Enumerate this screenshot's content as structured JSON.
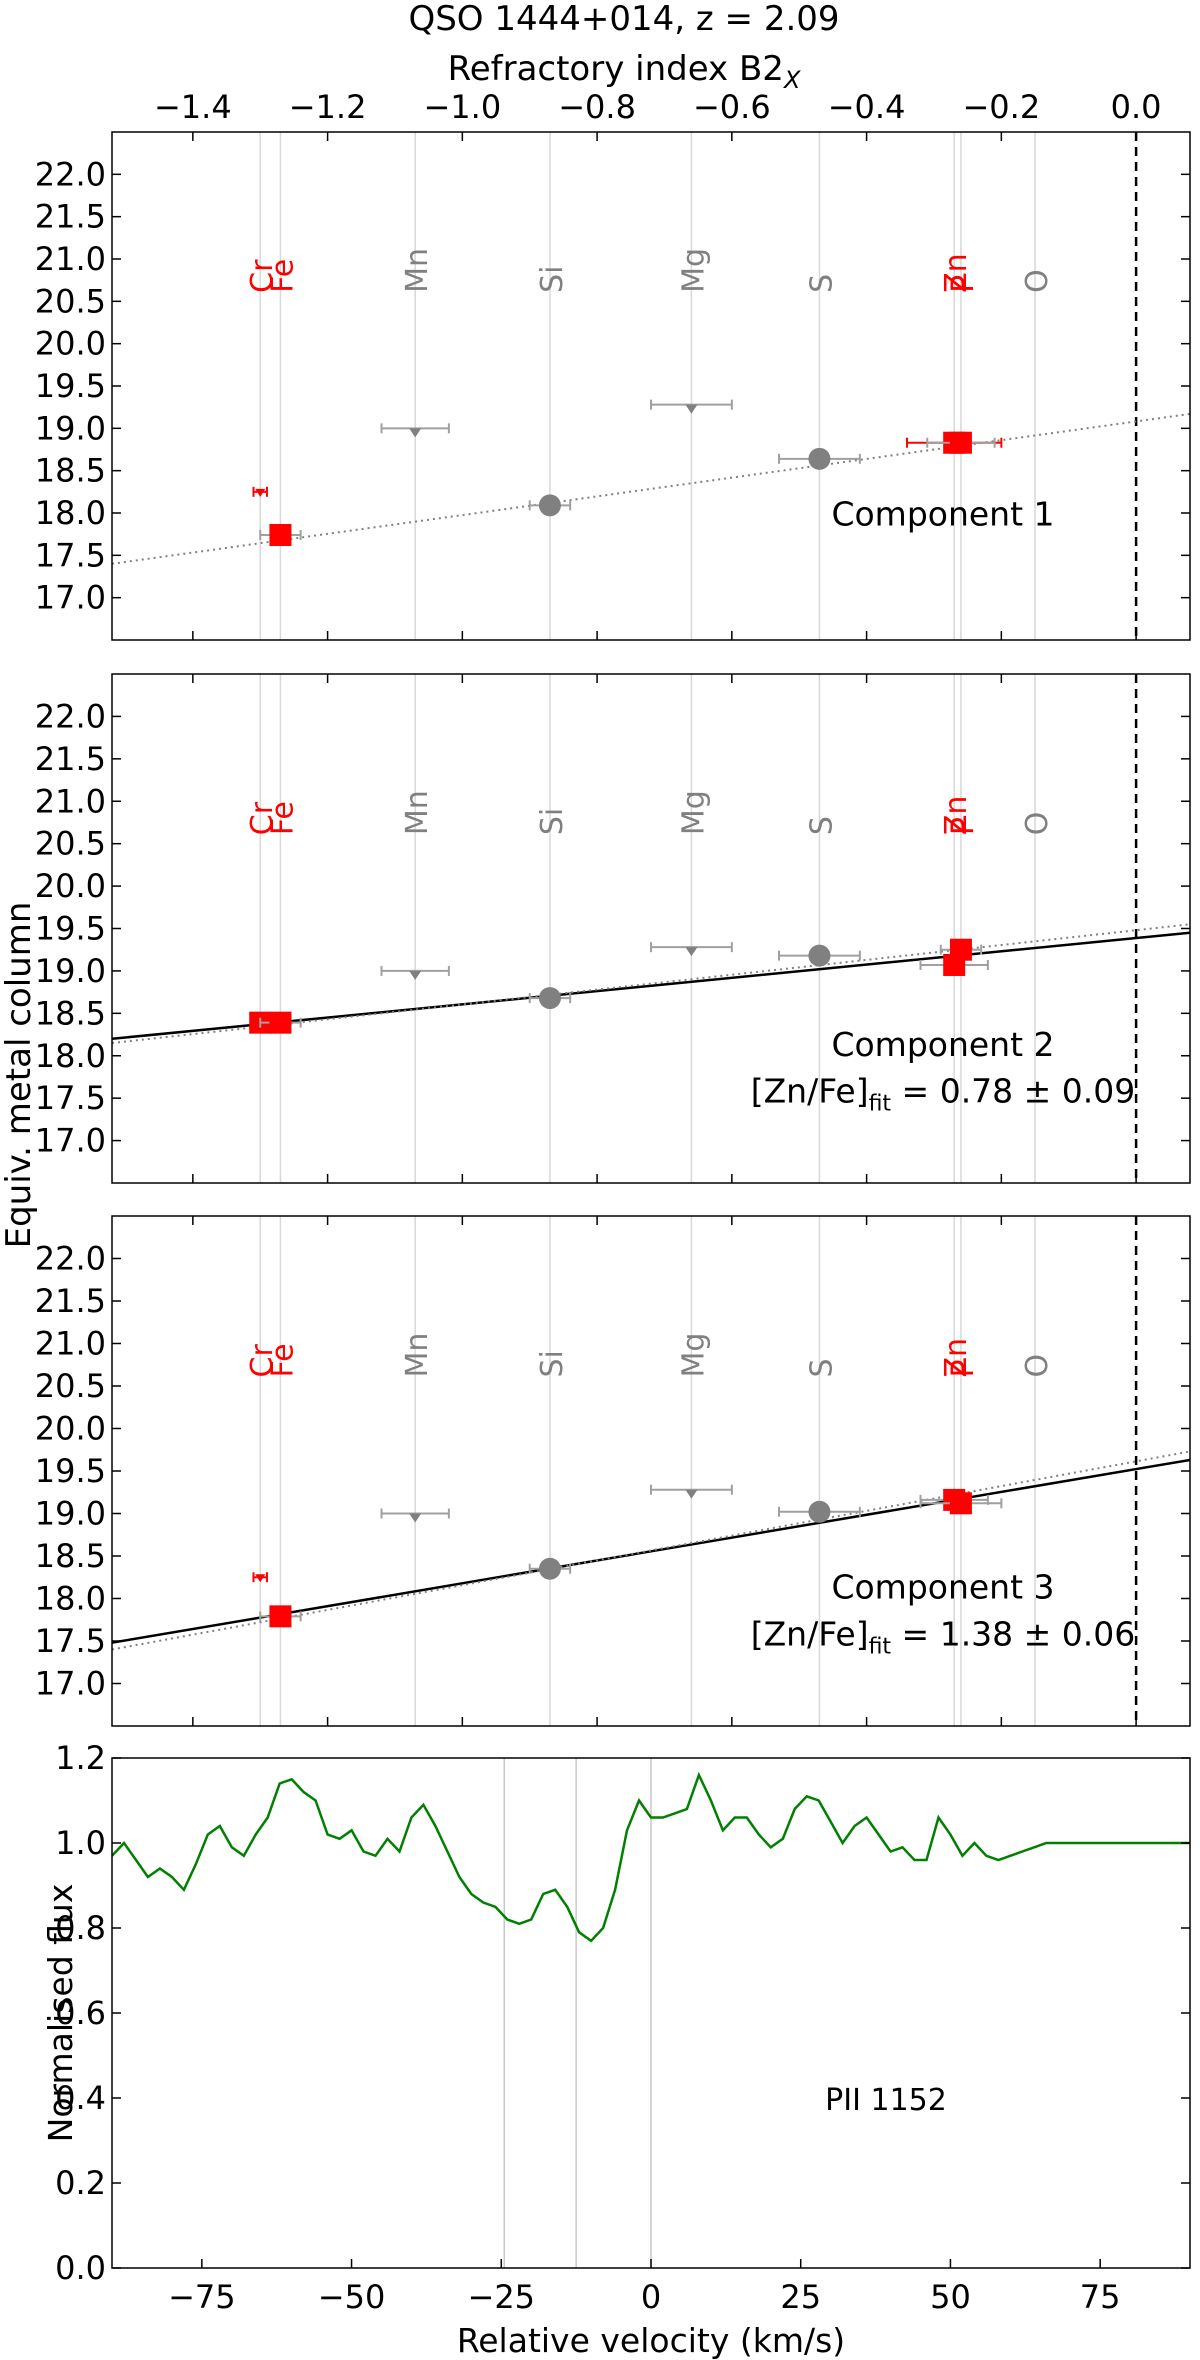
{
  "figure": {
    "title": "QSO 1444+014, z = 2.09",
    "top_axis_label": "Refractory index B2",
    "top_axis_label_sub": "X",
    "y_label": "Equiv. metal column",
    "top_ticks": [
      "−1.4",
      "−1.2",
      "−1.0",
      "−0.8",
      "−0.6",
      "−0.4",
      "−0.2",
      "0.0"
    ],
    "y_ticks": [
      "22.0",
      "21.5",
      "21.0",
      "20.5",
      "20.0",
      "19.5",
      "19.0",
      "18.5",
      "18.0",
      "17.5",
      "17.0"
    ],
    "colors": {
      "red": "#ff0000",
      "grey": "#808080",
      "green": "#008000",
      "black": "#000000"
    }
  },
  "chart_data": [
    {
      "type": "scatter",
      "label": "Component 1",
      "fit_text": "",
      "fit_text_sub": "",
      "fit_value": "",
      "xlabel": "Refractory index B2X",
      "ylabel": "Equiv. metal column",
      "xlim": [
        -1.52,
        0.08
      ],
      "ylim": [
        16.5,
        22.5
      ],
      "elements": [
        {
          "name": "Cr",
          "x": -1.3,
          "color": "red"
        },
        {
          "name": "Fe",
          "x": -1.27,
          "color": "red"
        },
        {
          "name": "Mn",
          "x": -1.07,
          "color": "grey"
        },
        {
          "name": "Si",
          "x": -0.87,
          "color": "grey"
        },
        {
          "name": "Mg",
          "x": -0.66,
          "color": "grey"
        },
        {
          "name": "S",
          "x": -0.47,
          "color": "grey"
        },
        {
          "name": "Zn",
          "x": -0.27,
          "color": "red"
        },
        {
          "name": "P",
          "x": -0.26,
          "color": "red"
        },
        {
          "name": "O",
          "x": -0.15,
          "color": "grey"
        }
      ],
      "points": [
        {
          "el": "Cr",
          "x": -1.3,
          "y": 18.25,
          "xerr": 0.01,
          "marker": "limit-red"
        },
        {
          "el": "Fe",
          "x": -1.27,
          "y": 17.74,
          "xerr": 0.03,
          "marker": "square"
        },
        {
          "el": "Mn",
          "x": -1.07,
          "y": 19.0,
          "xerr": 0.05,
          "marker": "upper"
        },
        {
          "el": "Si",
          "x": -0.87,
          "y": 18.09,
          "xerr": 0.03,
          "marker": "circle"
        },
        {
          "el": "Mg",
          "x": -0.66,
          "y": 19.28,
          "xerr": 0.06,
          "marker": "upper"
        },
        {
          "el": "S",
          "x": -0.47,
          "y": 18.64,
          "xerr": 0.06,
          "marker": "circle"
        },
        {
          "el": "Zn",
          "x": -0.27,
          "y": 18.83,
          "xerr": 0.07,
          "marker": "square-err"
        },
        {
          "el": "P",
          "x": -0.26,
          "y": 18.83,
          "xerr": 0.05,
          "marker": "square"
        }
      ],
      "fit_dotted": [
        [
          -1.52,
          17.4
        ],
        [
          0.08,
          19.17
        ]
      ],
      "fit_solid": null
    },
    {
      "type": "scatter",
      "label": "Component 2",
      "fit_text": "[Zn/Fe]",
      "fit_text_sub": "fit",
      "fit_value": " = 0.78 ± 0.09",
      "xlabel": "Refractory index B2X",
      "ylabel": "Equiv. metal column",
      "xlim": [
        -1.52,
        0.08
      ],
      "ylim": [
        16.5,
        22.5
      ],
      "elements": [
        {
          "name": "Cr",
          "x": -1.3,
          "color": "red"
        },
        {
          "name": "Fe",
          "x": -1.27,
          "color": "red"
        },
        {
          "name": "Mn",
          "x": -1.07,
          "color": "grey"
        },
        {
          "name": "Si",
          "x": -0.87,
          "color": "grey"
        },
        {
          "name": "Mg",
          "x": -0.66,
          "color": "grey"
        },
        {
          "name": "S",
          "x": -0.47,
          "color": "grey"
        },
        {
          "name": "Zn",
          "x": -0.27,
          "color": "red"
        },
        {
          "name": "P",
          "x": -0.26,
          "color": "red"
        },
        {
          "name": "O",
          "x": -0.15,
          "color": "grey"
        }
      ],
      "points": [
        {
          "el": "Cr",
          "x": -1.3,
          "y": 18.39,
          "xerr": 0.01,
          "marker": "square"
        },
        {
          "el": "Fe",
          "x": -1.27,
          "y": 18.39,
          "xerr": 0.03,
          "marker": "square"
        },
        {
          "el": "Mn",
          "x": -1.07,
          "y": 19.0,
          "xerr": 0.05,
          "marker": "upper"
        },
        {
          "el": "Si",
          "x": -0.87,
          "y": 18.68,
          "xerr": 0.03,
          "marker": "circle"
        },
        {
          "el": "Mg",
          "x": -0.66,
          "y": 19.28,
          "xerr": 0.06,
          "marker": "upper"
        },
        {
          "el": "S",
          "x": -0.47,
          "y": 19.18,
          "xerr": 0.06,
          "marker": "circle"
        },
        {
          "el": "Zn",
          "x": -0.27,
          "y": 19.07,
          "xerr": 0.05,
          "marker": "square"
        },
        {
          "el": "P",
          "x": -0.26,
          "y": 19.25,
          "xerr": 0.03,
          "marker": "square"
        }
      ],
      "fit_dotted": [
        [
          -1.52,
          18.15
        ],
        [
          0.08,
          19.55
        ]
      ],
      "fit_solid": [
        [
          -1.52,
          18.2
        ],
        [
          0.08,
          19.45
        ]
      ]
    },
    {
      "type": "scatter",
      "label": "Component 3",
      "fit_text": "[Zn/Fe]",
      "fit_text_sub": "fit",
      "fit_value": " = 1.38 ± 0.06",
      "xlabel": "Refractory index B2X",
      "ylabel": "Equiv. metal column",
      "xlim": [
        -1.52,
        0.08
      ],
      "ylim": [
        16.5,
        22.5
      ],
      "elements": [
        {
          "name": "Cr",
          "x": -1.3,
          "color": "red"
        },
        {
          "name": "Fe",
          "x": -1.27,
          "color": "red"
        },
        {
          "name": "Mn",
          "x": -1.07,
          "color": "grey"
        },
        {
          "name": "Si",
          "x": -0.87,
          "color": "grey"
        },
        {
          "name": "Mg",
          "x": -0.66,
          "color": "grey"
        },
        {
          "name": "S",
          "x": -0.47,
          "color": "grey"
        },
        {
          "name": "Zn",
          "x": -0.27,
          "color": "red"
        },
        {
          "name": "P",
          "x": -0.26,
          "color": "red"
        },
        {
          "name": "O",
          "x": -0.15,
          "color": "grey"
        }
      ],
      "points": [
        {
          "el": "Cr",
          "x": -1.3,
          "y": 18.25,
          "xerr": 0.01,
          "marker": "limit-red"
        },
        {
          "el": "Fe",
          "x": -1.27,
          "y": 17.79,
          "xerr": 0.03,
          "marker": "square"
        },
        {
          "el": "Mn",
          "x": -1.07,
          "y": 19.0,
          "xerr": 0.05,
          "marker": "upper"
        },
        {
          "el": "Si",
          "x": -0.87,
          "y": 18.35,
          "xerr": 0.03,
          "marker": "circle"
        },
        {
          "el": "Mg",
          "x": -0.66,
          "y": 19.28,
          "xerr": 0.06,
          "marker": "upper"
        },
        {
          "el": "S",
          "x": -0.47,
          "y": 19.02,
          "xerr": 0.06,
          "marker": "circle"
        },
        {
          "el": "Zn",
          "x": -0.27,
          "y": 19.16,
          "xerr": 0.05,
          "marker": "square"
        },
        {
          "el": "P",
          "x": -0.26,
          "y": 19.12,
          "xerr": 0.06,
          "marker": "square"
        }
      ],
      "fit_dotted": [
        [
          -1.52,
          17.4
        ],
        [
          0.08,
          19.73
        ]
      ],
      "fit_solid": [
        [
          -1.52,
          17.48
        ],
        [
          0.08,
          19.63
        ]
      ]
    },
    {
      "type": "line",
      "label": "PII 1152",
      "xlabel": "Relative velocity (km/s)",
      "ylabel": "Normalised flux",
      "xlim": [
        -90,
        90
      ],
      "ylim": [
        0.0,
        1.2
      ],
      "xticks": [
        "−75",
        "−50",
        "−25",
        "0",
        "25",
        "50",
        "75"
      ],
      "xtick_values": [
        -75,
        -50,
        -25,
        0,
        25,
        50,
        75
      ],
      "yticks": [
        "1.2",
        "1.0",
        "0.8",
        "0.6",
        "0.4",
        "0.2",
        "0.0"
      ],
      "ytick_values": [
        1.2,
        1.0,
        0.8,
        0.6,
        0.4,
        0.2,
        0.0
      ],
      "component_velocities": [
        -24.5,
        -12.5,
        0
      ],
      "series": [
        {
          "color": "green",
          "x": [
            -90,
            -88,
            -86,
            -84,
            -82,
            -80,
            -78,
            -76,
            -74,
            -72,
            -70,
            -68,
            -66,
            -64,
            -62,
            -60,
            -58,
            -56,
            -54,
            -52,
            -50,
            -48,
            -46,
            -44,
            -42,
            -40,
            -38,
            -36,
            -34,
            -32,
            -30,
            -28,
            -26,
            -24,
            -22,
            -20,
            -18,
            -16,
            -14,
            -12,
            -10,
            -8,
            -6,
            -4,
            -2,
            0,
            2,
            4,
            6,
            8,
            10,
            12,
            14,
            16,
            18,
            20,
            22,
            24,
            26,
            28,
            30,
            32,
            34,
            36,
            38,
            40,
            42,
            44,
            46,
            48,
            50,
            52,
            54,
            56,
            58,
            60,
            62,
            64,
            66,
            68,
            70,
            72,
            74,
            76,
            78,
            80,
            82,
            84,
            86,
            88,
            90
          ],
          "y": [
            0.97,
            1.0,
            0.96,
            0.92,
            0.94,
            0.92,
            0.89,
            0.95,
            1.02,
            1.04,
            0.99,
            0.97,
            1.02,
            1.06,
            1.14,
            1.15,
            1.12,
            1.1,
            1.02,
            1.01,
            1.03,
            0.98,
            0.97,
            1.01,
            0.98,
            1.06,
            1.09,
            1.04,
            0.98,
            0.92,
            0.88,
            0.86,
            0.85,
            0.82,
            0.81,
            0.82,
            0.88,
            0.89,
            0.85,
            0.79,
            0.77,
            0.8,
            0.89,
            1.03,
            1.1,
            1.06,
            1.06,
            1.07,
            1.08,
            1.16,
            1.1,
            1.03,
            1.06,
            1.06,
            1.02,
            0.99,
            1.01,
            1.08,
            1.11,
            1.1,
            1.05,
            1.0,
            1.04,
            1.06,
            1.02,
            0.98,
            0.99,
            0.96,
            0.96,
            1.06,
            1.02,
            0.97,
            1.0,
            0.97,
            0.96,
            0.97,
            0.98,
            0.99,
            1.0,
            1.0,
            1.0,
            1.0,
            1.0,
            1.0,
            1.0,
            1.0,
            1.0,
            1.0,
            1.0,
            1.0,
            1.0
          ]
        }
      ]
    }
  ]
}
